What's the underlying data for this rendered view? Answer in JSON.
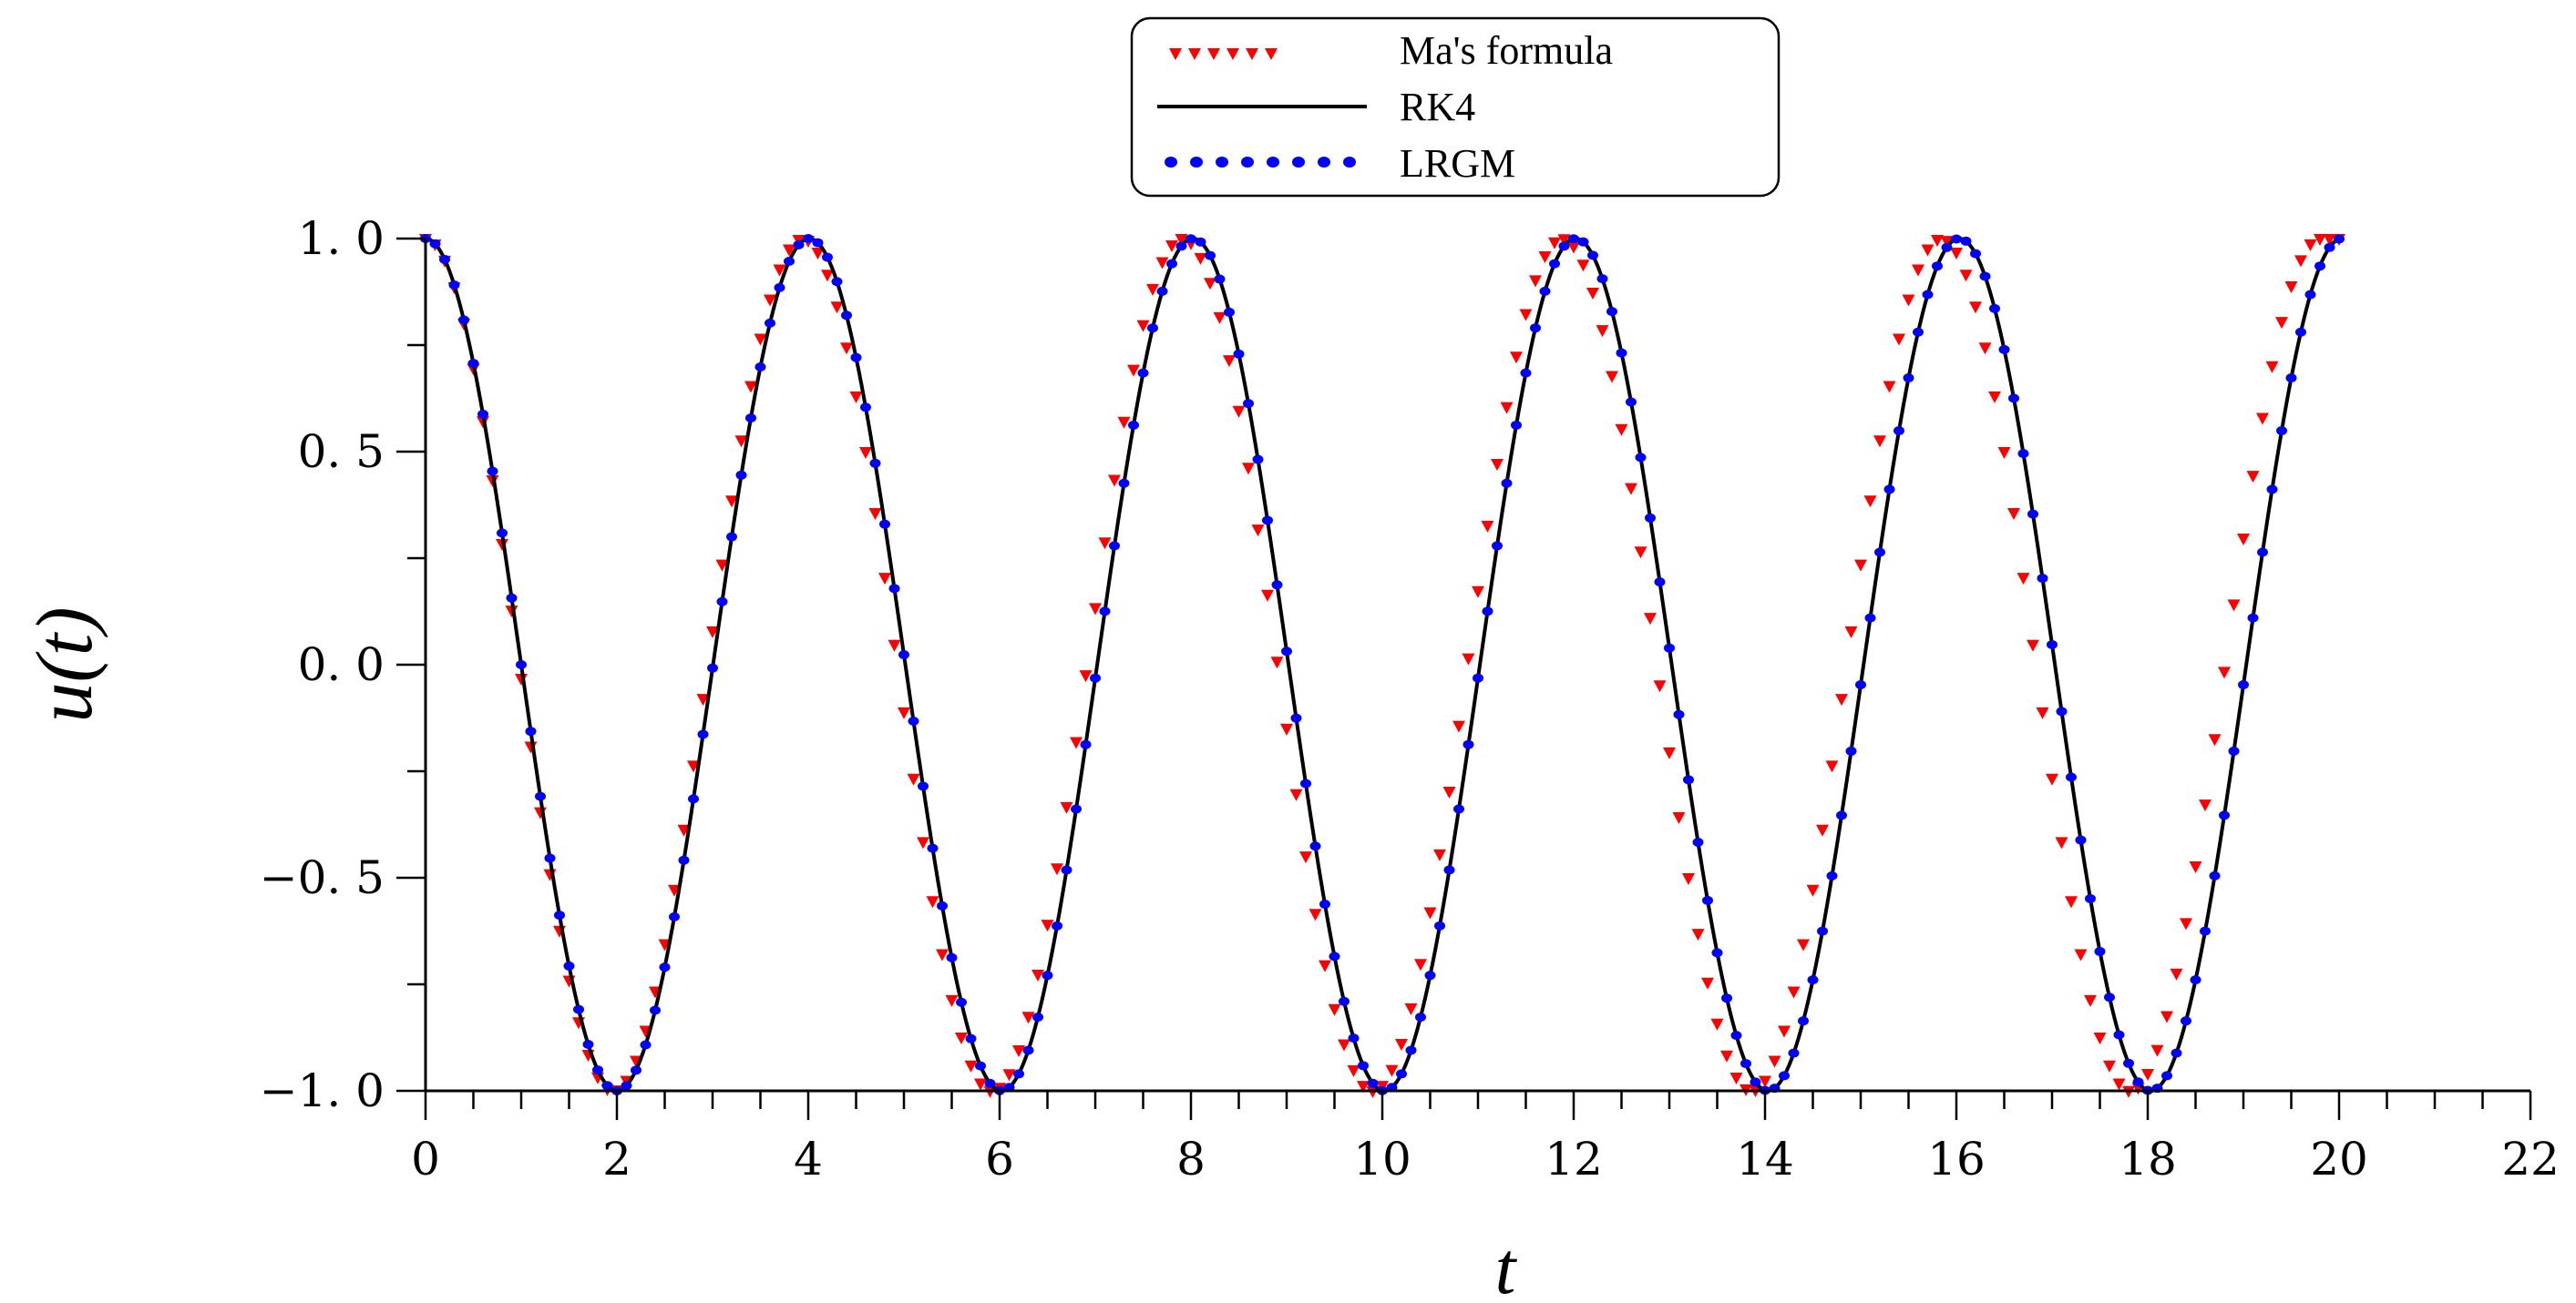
{
  "chart_data": {
    "type": "line",
    "title": "",
    "xlabel": "t",
    "ylabel": "u(t)",
    "xlim": [
      0,
      22
    ],
    "ylim": [
      -1,
      1
    ],
    "x_ticks": [
      0,
      2,
      4,
      6,
      8,
      10,
      12,
      14,
      16,
      18,
      20,
      22
    ],
    "x_tick_labels": [
      "0",
      "2",
      "4",
      "6",
      "8",
      "10",
      "12",
      "14",
      "16",
      "18",
      "20",
      "22"
    ],
    "y_ticks": [
      1,
      0.5,
      0,
      -0.5,
      -1
    ],
    "y_tick_labels": [
      "1. 0",
      "0. 5",
      "0. 0",
      "−0. 5",
      "−1. 0"
    ],
    "x_minor_step": 0.5,
    "y_minor_step": 0.25,
    "grid": false,
    "legend_position": "top-center",
    "series": [
      {
        "name": "Ma's formula",
        "style": "triangle-markers",
        "color": "#ff0000",
        "t_range": [
          0,
          20
        ],
        "samples": 201,
        "minima_t": [
          1.96,
          5.92,
          9.9,
          13.86,
          17.82
        ],
        "maxima_t": [
          3.94,
          7.91,
          11.88,
          15.84,
          19.8
        ]
      },
      {
        "name": "RK4",
        "style": "solid-line",
        "color": "#000000",
        "t_range": [
          0,
          20
        ],
        "samples": 801,
        "minima_t": [
          2.0,
          6.02,
          10.02,
          14.03,
          18.03
        ],
        "maxima_t": [
          4.01,
          8.02,
          12.02,
          16.03,
          20.03
        ]
      },
      {
        "name": "LRGM",
        "style": "dot-markers",
        "color": "#0000ff",
        "t_range": [
          0,
          20
        ],
        "samples": 201,
        "minima_t": [
          2.0,
          6.02,
          10.02,
          14.03,
          18.03
        ],
        "maxima_t": [
          4.01,
          8.02,
          12.02,
          16.03,
          20.03
        ]
      }
    ]
  }
}
